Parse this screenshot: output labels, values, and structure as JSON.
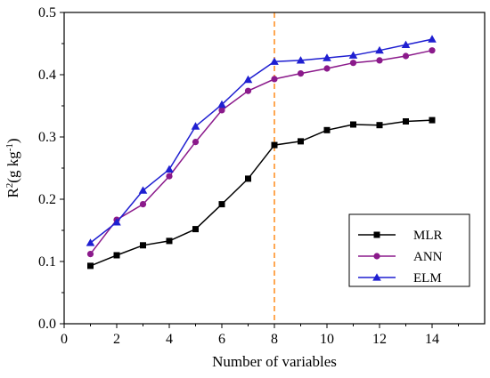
{
  "chart_data": {
    "type": "line",
    "title": "",
    "xlabel": "Number of variables",
    "ylabel": {
      "base": "R",
      "sup1": "2",
      "mid": "(g kg",
      "sup2": "-1",
      "end": ")"
    },
    "xlim": [
      0,
      16
    ],
    "ylim": [
      0.0,
      0.5
    ],
    "xticks": [
      0,
      2,
      4,
      6,
      8,
      10,
      12,
      14
    ],
    "yticks": [
      0.0,
      0.1,
      0.2,
      0.3,
      0.4,
      0.5
    ],
    "x": [
      1,
      2,
      3,
      4,
      5,
      6,
      7,
      8,
      9,
      10,
      11,
      12,
      13,
      14
    ],
    "series": [
      {
        "name": "MLR",
        "color": "#000000",
        "marker": "square",
        "values": [
          0.093,
          0.11,
          0.126,
          0.133,
          0.152,
          0.192,
          0.233,
          0.287,
          0.293,
          0.311,
          0.32,
          0.319,
          0.325,
          0.327
        ]
      },
      {
        "name": "ANN",
        "color": "#8b1a8b",
        "marker": "circle",
        "values": [
          0.112,
          0.167,
          0.192,
          0.237,
          0.292,
          0.343,
          0.374,
          0.393,
          0.402,
          0.41,
          0.419,
          0.423,
          0.43,
          0.439
        ]
      },
      {
        "name": "ELM",
        "color": "#1f1fd1",
        "marker": "triangle",
        "values": [
          0.13,
          0.163,
          0.214,
          0.248,
          0.317,
          0.352,
          0.392,
          0.421,
          0.423,
          0.427,
          0.431,
          0.439,
          0.448,
          0.457
        ]
      }
    ],
    "annotations": {
      "vline": {
        "x": 8,
        "color": "#ff8c1a",
        "style": "dashed"
      }
    },
    "legend": {
      "position": "bottom-right"
    },
    "grid": false
  }
}
